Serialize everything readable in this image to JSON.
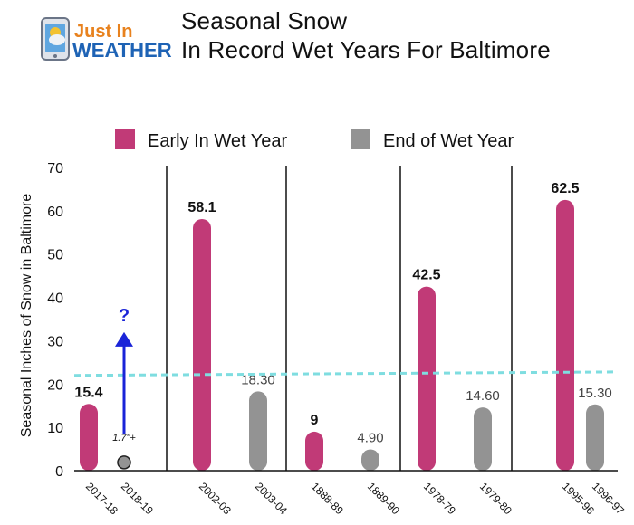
{
  "logo": {
    "line1": "Just In",
    "line2": "WEATHER"
  },
  "title_lines": [
    "Seasonal Snow",
    "In Record Wet Years For Baltimore"
  ],
  "chart_data": {
    "type": "bar",
    "ylabel": "Seasonal Inches of Snow in Baltimore",
    "ylim": [
      0,
      70
    ],
    "yticks": [
      "0",
      "10",
      "20",
      "30",
      "40",
      "50",
      "60",
      "70"
    ],
    "grid": false,
    "legend_position": "top",
    "colors": {
      "early": "#c13a77",
      "end": "#939393",
      "reference": "#7fdde0",
      "arrow": "#1a24d8"
    },
    "series": [
      {
        "name": "Early In Wet Year",
        "key": "early"
      },
      {
        "name": "End of Wet Year",
        "key": "end"
      }
    ],
    "categories": [
      "2017-18",
      "2018-19",
      "2002-03",
      "2003-04",
      "1888-89",
      "1889-90",
      "1978-79",
      "1979-80",
      "1995-96",
      "1996-97"
    ],
    "bars": [
      {
        "category": "2017-18",
        "series": "early",
        "value": 15.4,
        "label": "15.4"
      },
      {
        "category": "2018-19",
        "series": "end",
        "value": 1.7,
        "label": "1.7\"+",
        "marker": "dot"
      },
      {
        "category": "2002-03",
        "series": "early",
        "value": 58.1,
        "label": "58.1"
      },
      {
        "category": "2003-04",
        "series": "end",
        "value": 18.3,
        "label": "18.30"
      },
      {
        "category": "1888-89",
        "series": "early",
        "value": 9,
        "label": "9"
      },
      {
        "category": "1889-90",
        "series": "end",
        "value": 4.9,
        "label": "4.90"
      },
      {
        "category": "1978-79",
        "series": "early",
        "value": 42.5,
        "label": "42.5"
      },
      {
        "category": "1979-80",
        "series": "end",
        "value": 14.6,
        "label": "14.60"
      },
      {
        "category": "1995-96",
        "series": "early",
        "value": 62.5,
        "label": "62.5"
      },
      {
        "category": "1996-97",
        "series": "end",
        "value": 15.3,
        "label": "15.30"
      }
    ],
    "reference_line": {
      "start": 22,
      "end": 22.8
    },
    "annotation": {
      "category": "2018-19",
      "text": "?",
      "arrow_from": 8.5,
      "arrow_to": 32
    }
  }
}
